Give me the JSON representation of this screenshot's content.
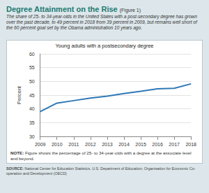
{
  "chart_data": {
    "type": "line",
    "title": "Degree Attainment on the Rise",
    "title_note": "(Figure 1)",
    "subtitle": "The share of 25- to 34-year-olds in the United States with a post-secondary degree has grown over the past decade, to 49 percent in 2018 from 39 percent in 2009, but remains well short of the 60 percent goal set by the Obama administration 10 years ago.",
    "chart_title": "Young adults with a postsecondary degree",
    "y_label": "Percent",
    "note": "NOTE: Figure shows the percentage of 25- to 34-year-olds with a degree at the associate level and beyond.",
    "source": "SOURCE: National Center for Education Statistics, U.S. Department of Education; Organisation for Economic Co-operation and Development (OECD)",
    "categories": [
      "2009",
      "2010",
      "2011",
      "2012",
      "2013",
      "2014",
      "2015",
      "2016",
      "2017",
      "2018"
    ],
    "values": [
      39,
      42.1,
      43,
      43.9,
      44.6,
      45.6,
      46.4,
      47.3,
      47.5,
      49.1
    ],
    "color": "#2f78b7",
    "ylim": [
      30,
      60
    ],
    "yticks": [
      30,
      35,
      40,
      45,
      50,
      55,
      60
    ],
    "grid": true
  }
}
